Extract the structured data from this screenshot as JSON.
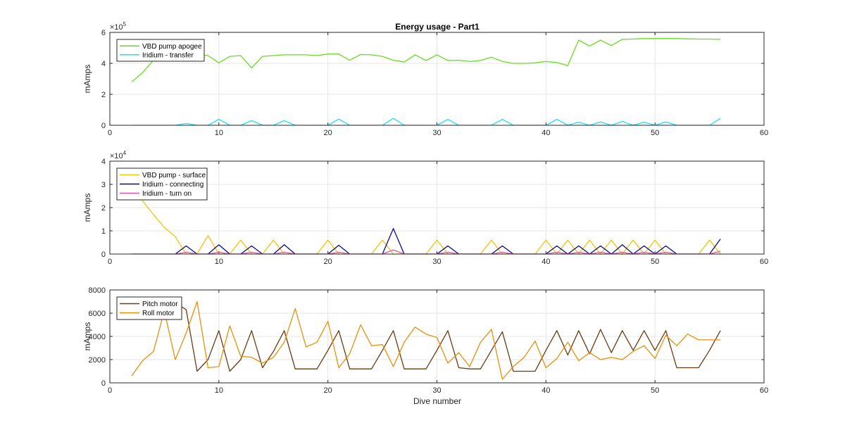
{
  "figure_title": "Energy usage - Part1",
  "chart_data": [
    {
      "type": "line",
      "title": "Energy usage - Part1",
      "xlabel": "",
      "ylabel": "mAmps",
      "xlim": [
        0,
        60
      ],
      "ylim": [
        0,
        600000
      ],
      "xticks": [
        "0",
        "10",
        "20",
        "30",
        "40",
        "50",
        "60"
      ],
      "yticks": [
        "0",
        "2",
        "4",
        "6"
      ],
      "y_exponent": "×10^5",
      "y_exponent_base": "×10",
      "y_exponent_power": "5",
      "grid": true,
      "legend": "top-left",
      "series": [
        {
          "name": "VBD pump apogee",
          "color": "#66dd22",
          "x": [
            2,
            3,
            4,
            5,
            6,
            7,
            8,
            9,
            10,
            11,
            12,
            13,
            14,
            15,
            16,
            17,
            18,
            19,
            20,
            21,
            22,
            23,
            24,
            25,
            26,
            27,
            28,
            29,
            30,
            31,
            32,
            33,
            34,
            35,
            36,
            37,
            38,
            39,
            40,
            41,
            42,
            43,
            44,
            45,
            46,
            47,
            48,
            49,
            50,
            51,
            52,
            53,
            54,
            55,
            56
          ],
          "values": [
            280000,
            340000,
            420000,
            470000,
            470000,
            470000,
            455000,
            450000,
            403000,
            445000,
            450000,
            370000,
            445000,
            450000,
            455000,
            455000,
            455000,
            450000,
            460000,
            460000,
            420000,
            457000,
            455000,
            445000,
            420000,
            408000,
            455000,
            418000,
            455000,
            418000,
            420000,
            412000,
            418000,
            440000,
            412000,
            400000,
            400000,
            403000,
            412000,
            405000,
            385000,
            550000,
            512000,
            550000,
            515000,
            555000,
            557000,
            560000,
            560000,
            560000,
            560000,
            558000,
            557000,
            557000,
            555000
          ]
        },
        {
          "name": "Iridium - transfer",
          "color": "#22ddee",
          "x": [
            2,
            3,
            4,
            5,
            6,
            7,
            8,
            9,
            10,
            11,
            12,
            13,
            14,
            15,
            16,
            17,
            18,
            19,
            20,
            21,
            22,
            23,
            24,
            25,
            26,
            27,
            28,
            29,
            30,
            31,
            32,
            33,
            34,
            35,
            36,
            37,
            38,
            39,
            40,
            41,
            42,
            43,
            44,
            45,
            46,
            47,
            48,
            49,
            50,
            51,
            52,
            53,
            54,
            55,
            56
          ],
          "values": [
            0,
            0,
            0,
            0,
            0,
            12000,
            0,
            0,
            38000,
            0,
            0,
            30000,
            0,
            0,
            30000,
            0,
            0,
            0,
            0,
            40000,
            0,
            0,
            0,
            0,
            45000,
            0,
            0,
            0,
            0,
            38000,
            0,
            0,
            0,
            0,
            38000,
            0,
            0,
            0,
            0,
            38000,
            0,
            20000,
            0,
            22000,
            0,
            25000,
            0,
            20000,
            0,
            22000,
            0,
            0,
            0,
            0,
            45000
          ]
        }
      ]
    },
    {
      "type": "line",
      "title": "",
      "xlabel": "",
      "ylabel": "mAmps",
      "xlim": [
        0,
        60
      ],
      "ylim": [
        0,
        40000
      ],
      "xticks": [
        "0",
        "10",
        "20",
        "30",
        "40",
        "50",
        "60"
      ],
      "yticks": [
        "0",
        "1",
        "2",
        "3",
        "4"
      ],
      "y_exponent": "×10^4",
      "y_exponent_base": "×10",
      "y_exponent_power": "4",
      "grid": true,
      "legend": "top-left",
      "series": [
        {
          "name": "VBD pump - surface",
          "color": "#f2c40c",
          "x": [
            2,
            3,
            4,
            5,
            6,
            7,
            8,
            9,
            10,
            11,
            12,
            13,
            14,
            15,
            16,
            17,
            18,
            19,
            20,
            21,
            22,
            23,
            24,
            25,
            26,
            27,
            28,
            29,
            30,
            31,
            32,
            33,
            34,
            35,
            36,
            37,
            38,
            39,
            40,
            41,
            42,
            43,
            44,
            45,
            46,
            47,
            48,
            49,
            50,
            51,
            52,
            53,
            54,
            55,
            56
          ],
          "values": [
            35000,
            23000,
            17000,
            11500,
            7500,
            0,
            0,
            8000,
            0,
            0,
            6000,
            0,
            0,
            6000,
            0,
            0,
            0,
            0,
            6000,
            0,
            0,
            0,
            0,
            6000,
            0,
            0,
            0,
            0,
            6000,
            0,
            0,
            0,
            0,
            6000,
            0,
            0,
            0,
            0,
            6000,
            0,
            6000,
            0,
            6000,
            0,
            6000,
            0,
            6000,
            0,
            6000,
            0,
            0,
            0,
            0,
            6000,
            0
          ]
        },
        {
          "name": "Iridium - connecting",
          "color": "#0a0a8c",
          "x": [
            2,
            3,
            4,
            5,
            6,
            7,
            8,
            9,
            10,
            11,
            12,
            13,
            14,
            15,
            16,
            17,
            18,
            19,
            20,
            21,
            22,
            23,
            24,
            25,
            26,
            27,
            28,
            29,
            30,
            31,
            32,
            33,
            34,
            35,
            36,
            37,
            38,
            39,
            40,
            41,
            42,
            43,
            44,
            45,
            46,
            47,
            48,
            49,
            50,
            51,
            52,
            53,
            54,
            55,
            56
          ],
          "values": [
            0,
            0,
            0,
            0,
            0,
            3500,
            0,
            0,
            4000,
            0,
            0,
            3500,
            0,
            0,
            4000,
            0,
            0,
            0,
            0,
            3800,
            0,
            0,
            0,
            0,
            11000,
            0,
            0,
            0,
            0,
            3500,
            0,
            0,
            0,
            0,
            3500,
            0,
            0,
            0,
            0,
            3500,
            0,
            3500,
            0,
            3500,
            0,
            4000,
            0,
            3500,
            0,
            3500,
            0,
            0,
            0,
            0,
            6500
          ]
        },
        {
          "name": "Iridium - turn on",
          "color": "#e055b0",
          "x": [
            2,
            3,
            4,
            5,
            6,
            7,
            8,
            9,
            10,
            11,
            12,
            13,
            14,
            15,
            16,
            17,
            18,
            19,
            20,
            21,
            22,
            23,
            24,
            25,
            26,
            27,
            28,
            29,
            30,
            31,
            32,
            33,
            34,
            35,
            36,
            37,
            38,
            39,
            40,
            41,
            42,
            43,
            44,
            45,
            46,
            47,
            48,
            49,
            50,
            51,
            52,
            53,
            54,
            55,
            56
          ],
          "values": [
            0,
            0,
            0,
            0,
            0,
            800,
            0,
            0,
            800,
            0,
            0,
            800,
            0,
            0,
            800,
            0,
            0,
            0,
            0,
            800,
            0,
            0,
            0,
            0,
            1800,
            0,
            0,
            0,
            0,
            800,
            0,
            0,
            0,
            0,
            800,
            0,
            0,
            0,
            0,
            800,
            0,
            800,
            0,
            800,
            0,
            800,
            0,
            800,
            0,
            800,
            0,
            0,
            0,
            0,
            1200
          ]
        }
      ]
    },
    {
      "type": "line",
      "title": "",
      "xlabel": "Dive number",
      "ylabel": "mAmps",
      "xlim": [
        0,
        60
      ],
      "ylim": [
        0,
        8000
      ],
      "xticks": [
        "0",
        "10",
        "20",
        "30",
        "40",
        "50",
        "60"
      ],
      "yticks": [
        "0",
        "2000",
        "4000",
        "6000",
        "8000"
      ],
      "grid": true,
      "legend": "top-left",
      "series": [
        {
          "name": "Pitch motor",
          "color": "#6b3a12",
          "x": [
            2,
            3,
            4,
            5,
            6,
            7,
            8,
            9,
            10,
            11,
            12,
            13,
            14,
            15,
            16,
            17,
            18,
            19,
            20,
            21,
            22,
            23,
            24,
            25,
            26,
            27,
            28,
            29,
            30,
            31,
            32,
            33,
            34,
            35,
            36,
            37,
            38,
            39,
            40,
            41,
            42,
            43,
            44,
            45,
            46,
            47,
            48,
            49,
            50,
            51,
            52,
            53,
            54,
            55,
            56
          ],
          "values": [
            6800,
            6800,
            6800,
            6900,
            6900,
            6300,
            1000,
            2000,
            4500,
            1000,
            2000,
            4500,
            1300,
            2700,
            4500,
            1200,
            1200,
            1200,
            2800,
            4500,
            1200,
            1200,
            1200,
            2800,
            4500,
            1200,
            1200,
            1200,
            2800,
            4500,
            1300,
            1200,
            1200,
            2800,
            4400,
            1000,
            1000,
            1000,
            2800,
            4500,
            2400,
            4500,
            2500,
            4600,
            2600,
            4500,
            2800,
            4500,
            2800,
            4500,
            1300,
            1300,
            1300,
            2800,
            4500
          ]
        },
        {
          "name": "Roll motor",
          "color": "#e8900c",
          "x": [
            2,
            3,
            4,
            5,
            6,
            7,
            8,
            9,
            10,
            11,
            12,
            13,
            14,
            15,
            16,
            17,
            18,
            19,
            20,
            21,
            22,
            23,
            24,
            25,
            26,
            27,
            28,
            29,
            30,
            31,
            32,
            33,
            34,
            35,
            36,
            37,
            38,
            39,
            40,
            41,
            42,
            43,
            44,
            45,
            46,
            47,
            48,
            49,
            50,
            51,
            52,
            53,
            54,
            55,
            56
          ],
          "values": [
            600,
            1900,
            2700,
            6200,
            2000,
            4300,
            7000,
            1300,
            1400,
            4900,
            2300,
            2200,
            1700,
            2200,
            3500,
            6400,
            3100,
            3500,
            5300,
            1300,
            2500,
            5000,
            3200,
            3300,
            1400,
            3500,
            4800,
            4200,
            3900,
            1700,
            2600,
            1400,
            3500,
            4600,
            300,
            1400,
            2200,
            3600,
            1300,
            2100,
            3500,
            1900,
            2600,
            2000,
            2200,
            2000,
            2700,
            3200,
            2100,
            4100,
            3200,
            4200,
            3700,
            3700,
            3700
          ]
        }
      ]
    }
  ]
}
